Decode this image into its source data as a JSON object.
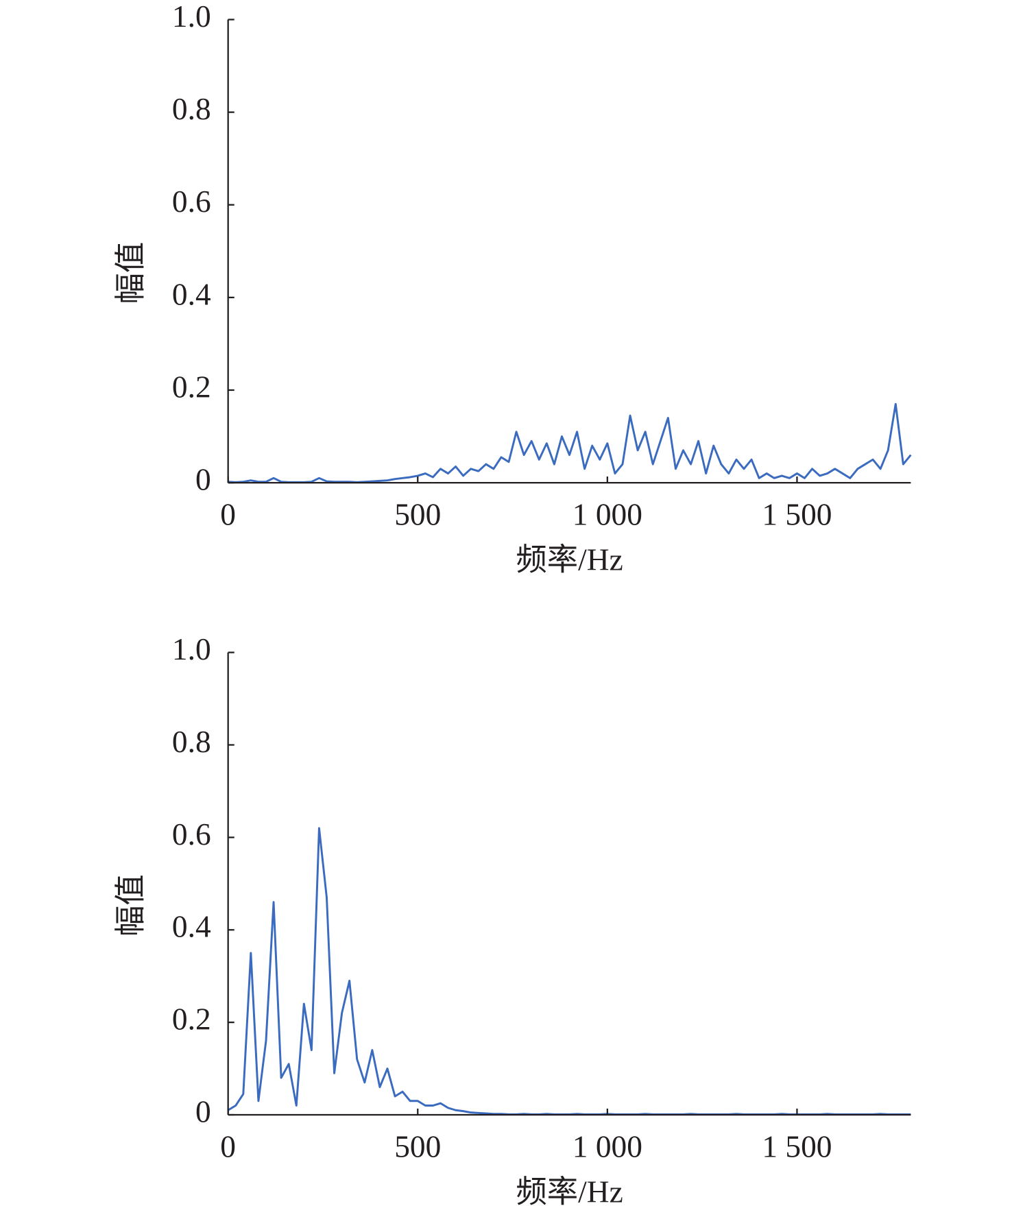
{
  "chart_data": [
    {
      "type": "line",
      "xlabel": "频率/Hz",
      "ylabel": "幅值",
      "color": "#3b6bbf",
      "xlim": [
        0,
        1800
      ],
      "ylim": [
        0,
        1
      ],
      "xticks": [
        0,
        500,
        {
          "value": 1000,
          "label": "1 000"
        },
        {
          "value": 1500,
          "label": "1 500"
        }
      ],
      "yticks": [
        0,
        0.2,
        0.4,
        0.6,
        0.8,
        {
          "value": 1.0,
          "label": "1.0"
        }
      ],
      "x": [
        0,
        20,
        40,
        60,
        80,
        100,
        120,
        140,
        160,
        180,
        200,
        220,
        240,
        260,
        280,
        300,
        320,
        340,
        360,
        380,
        400,
        420,
        440,
        460,
        480,
        500,
        520,
        540,
        560,
        580,
        600,
        620,
        640,
        660,
        680,
        700,
        720,
        740,
        760,
        780,
        800,
        820,
        840,
        860,
        880,
        900,
        920,
        940,
        960,
        980,
        1000,
        1020,
        1040,
        1060,
        1080,
        1100,
        1120,
        1140,
        1160,
        1180,
        1200,
        1220,
        1240,
        1260,
        1280,
        1300,
        1320,
        1340,
        1360,
        1380,
        1400,
        1420,
        1440,
        1460,
        1480,
        1500,
        1520,
        1540,
        1560,
        1580,
        1600,
        1620,
        1640,
        1660,
        1680,
        1700,
        1720,
        1740,
        1760,
        1780,
        1800
      ],
      "values": [
        0.002,
        0.001,
        0.002,
        0.005,
        0.002,
        0.002,
        0.01,
        0.002,
        0.001,
        0.001,
        0.001,
        0.002,
        0.01,
        0.003,
        0.002,
        0.002,
        0.002,
        0.001,
        0.002,
        0.003,
        0.004,
        0.005,
        0.008,
        0.01,
        0.012,
        0.015,
        0.02,
        0.012,
        0.03,
        0.02,
        0.035,
        0.015,
        0.03,
        0.025,
        0.04,
        0.03,
        0.055,
        0.045,
        0.11,
        0.06,
        0.09,
        0.05,
        0.085,
        0.04,
        0.1,
        0.06,
        0.11,
        0.03,
        0.08,
        0.05,
        0.085,
        0.02,
        0.04,
        0.145,
        0.07,
        0.11,
        0.04,
        0.09,
        0.14,
        0.03,
        0.07,
        0.04,
        0.09,
        0.02,
        0.08,
        0.04,
        0.02,
        0.05,
        0.03,
        0.05,
        0.01,
        0.02,
        0.01,
        0.015,
        0.01,
        0.02,
        0.01,
        0.03,
        0.015,
        0.02,
        0.03,
        0.02,
        0.01,
        0.03,
        0.04,
        0.05,
        0.03,
        0.07,
        0.17,
        0.04,
        0.06
      ]
    },
    {
      "type": "line",
      "xlabel": "频率/Hz",
      "ylabel": "幅值",
      "color": "#3b6bbf",
      "xlim": [
        0,
        1800
      ],
      "ylim": [
        0,
        1
      ],
      "xticks": [
        0,
        500,
        {
          "value": 1000,
          "label": "1 000"
        },
        {
          "value": 1500,
          "label": "1 500"
        }
      ],
      "yticks": [
        0,
        0.2,
        0.4,
        0.6,
        0.8,
        {
          "value": 1.0,
          "label": "1.0"
        }
      ],
      "x": [
        0,
        20,
        40,
        60,
        80,
        100,
        120,
        140,
        160,
        180,
        200,
        220,
        240,
        260,
        280,
        300,
        320,
        340,
        360,
        380,
        400,
        420,
        440,
        460,
        480,
        500,
        520,
        540,
        560,
        580,
        600,
        620,
        640,
        660,
        680,
        700,
        720,
        740,
        760,
        780,
        800,
        820,
        840,
        860,
        880,
        900,
        920,
        940,
        960,
        980,
        1000,
        1020,
        1040,
        1060,
        1080,
        1100,
        1120,
        1140,
        1160,
        1180,
        1200,
        1220,
        1240,
        1260,
        1280,
        1300,
        1320,
        1340,
        1360,
        1380,
        1400,
        1420,
        1440,
        1460,
        1480,
        1500,
        1520,
        1540,
        1560,
        1580,
        1600,
        1620,
        1640,
        1660,
        1680,
        1700,
        1720,
        1740,
        1760,
        1780,
        1800
      ],
      "values": [
        0.01,
        0.02,
        0.045,
        0.35,
        0.03,
        0.16,
        0.46,
        0.08,
        0.11,
        0.02,
        0.24,
        0.14,
        0.62,
        0.47,
        0.09,
        0.22,
        0.29,
        0.12,
        0.07,
        0.14,
        0.06,
        0.1,
        0.04,
        0.05,
        0.03,
        0.03,
        0.02,
        0.02,
        0.025,
        0.015,
        0.01,
        0.008,
        0.005,
        0.004,
        0.003,
        0.002,
        0.002,
        0.001,
        0.001,
        0.002,
        0.001,
        0.001,
        0.002,
        0.001,
        0.001,
        0.001,
        0.002,
        0.001,
        0.001,
        0.001,
        0.002,
        0.001,
        0.001,
        0.001,
        0.001,
        0.002,
        0.001,
        0.001,
        0.001,
        0.001,
        0.001,
        0.002,
        0.001,
        0.001,
        0.001,
        0.001,
        0.001,
        0.002,
        0.001,
        0.001,
        0.001,
        0.001,
        0.001,
        0.002,
        0.001,
        0.001,
        0.001,
        0.001,
        0.001,
        0.002,
        0.001,
        0.001,
        0.001,
        0.001,
        0.001,
        0.001,
        0.002,
        0.001,
        0.001,
        0.001,
        0.001
      ]
    }
  ]
}
